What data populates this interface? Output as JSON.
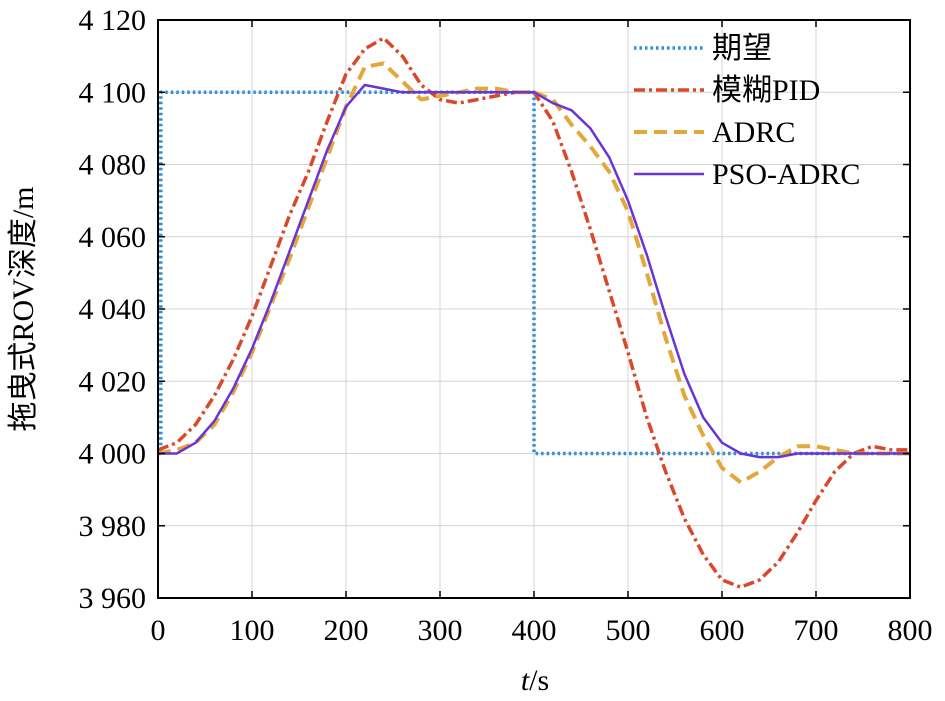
{
  "chart_data": {
    "type": "line",
    "xlabel_italic": "t",
    "xlabel_unit": "/s",
    "ylabel": "拖曳式ROV深度/m",
    "xlim": [
      0,
      800
    ],
    "ylim": [
      3960,
      4120
    ],
    "grid": true,
    "xticks": [
      0,
      100,
      200,
      300,
      400,
      500,
      600,
      700,
      800
    ],
    "xtick_labels": [
      "0",
      "100",
      "200",
      "300",
      "400",
      "500",
      "600",
      "700",
      "800"
    ],
    "yticks": [
      3960,
      3980,
      4000,
      4020,
      4040,
      4060,
      4080,
      4100,
      4120
    ],
    "ytick_labels": [
      "3 960",
      "3 980",
      "4 000",
      "4 020",
      "4 040",
      "4 060",
      "4 080",
      "4 100",
      "4 120"
    ],
    "legend_position": "top-right",
    "series": [
      {
        "name": "期望",
        "color": "#2e8fd6",
        "style": "dotted",
        "x": [
          0,
          3,
          3,
          400,
          400,
          800
        ],
        "y": [
          4000,
          4000,
          4100,
          4100,
          4000,
          4000
        ]
      },
      {
        "name": "模糊PID",
        "color": "#d9482b",
        "style": "dashdot",
        "x": [
          0,
          20,
          40,
          60,
          80,
          100,
          120,
          140,
          160,
          180,
          200,
          220,
          240,
          260,
          280,
          300,
          320,
          340,
          360,
          380,
          400,
          420,
          440,
          460,
          480,
          500,
          520,
          540,
          560,
          580,
          600,
          620,
          640,
          660,
          680,
          700,
          720,
          740,
          760,
          780,
          800
        ],
        "y": [
          4001,
          4003,
          4008,
          4016,
          4026,
          4038,
          4052,
          4066,
          4078,
          4092,
          4105,
          4112,
          4115,
          4110,
          4102,
          4098,
          4097,
          4098,
          4099,
          4100,
          4100,
          4092,
          4078,
          4062,
          4045,
          4028,
          4010,
          3995,
          3982,
          3972,
          3965,
          3963,
          3965,
          3970,
          3978,
          3987,
          3995,
          4000,
          4002,
          4001,
          4001
        ]
      },
      {
        "name": "ADRC",
        "color": "#e3a73a",
        "style": "dashed",
        "x": [
          0,
          20,
          40,
          60,
          80,
          100,
          120,
          140,
          160,
          180,
          200,
          220,
          240,
          260,
          280,
          300,
          320,
          340,
          360,
          380,
          400,
          420,
          440,
          460,
          480,
          500,
          520,
          540,
          560,
          580,
          600,
          620,
          640,
          660,
          680,
          700,
          720,
          740,
          760,
          780,
          800
        ],
        "y": [
          4000,
          4001,
          4003,
          4008,
          4017,
          4028,
          4041,
          4054,
          4068,
          4082,
          4096,
          4107,
          4108,
          4103,
          4098,
          4099,
          4100,
          4101,
          4101,
          4100,
          4100,
          4098,
          4091,
          4085,
          4078,
          4067,
          4050,
          4032,
          4016,
          4005,
          3996,
          3992,
          3995,
          3999,
          4002,
          4002,
          4001,
          4000,
          4000,
          4000,
          4000
        ]
      },
      {
        "name": "PSO-ADRC",
        "color": "#6a35d4",
        "style": "solid",
        "x": [
          0,
          20,
          40,
          60,
          80,
          100,
          120,
          140,
          160,
          180,
          200,
          220,
          240,
          260,
          280,
          300,
          320,
          340,
          360,
          380,
          400,
          420,
          440,
          460,
          480,
          500,
          520,
          540,
          560,
          580,
          600,
          620,
          640,
          660,
          680,
          700,
          720,
          740,
          760,
          780,
          800
        ],
        "y": [
          4000,
          4000,
          4003,
          4009,
          4018,
          4029,
          4042,
          4056,
          4070,
          4084,
          4096,
          4102,
          4101,
          4100,
          4100,
          4100,
          4100,
          4100,
          4100,
          4100,
          4100,
          4097,
          4095,
          4090,
          4082,
          4070,
          4055,
          4038,
          4022,
          4010,
          4003,
          4000,
          3999,
          3999,
          4000,
          4000,
          4000,
          4000,
          4000,
          4000,
          4000
        ]
      }
    ]
  }
}
